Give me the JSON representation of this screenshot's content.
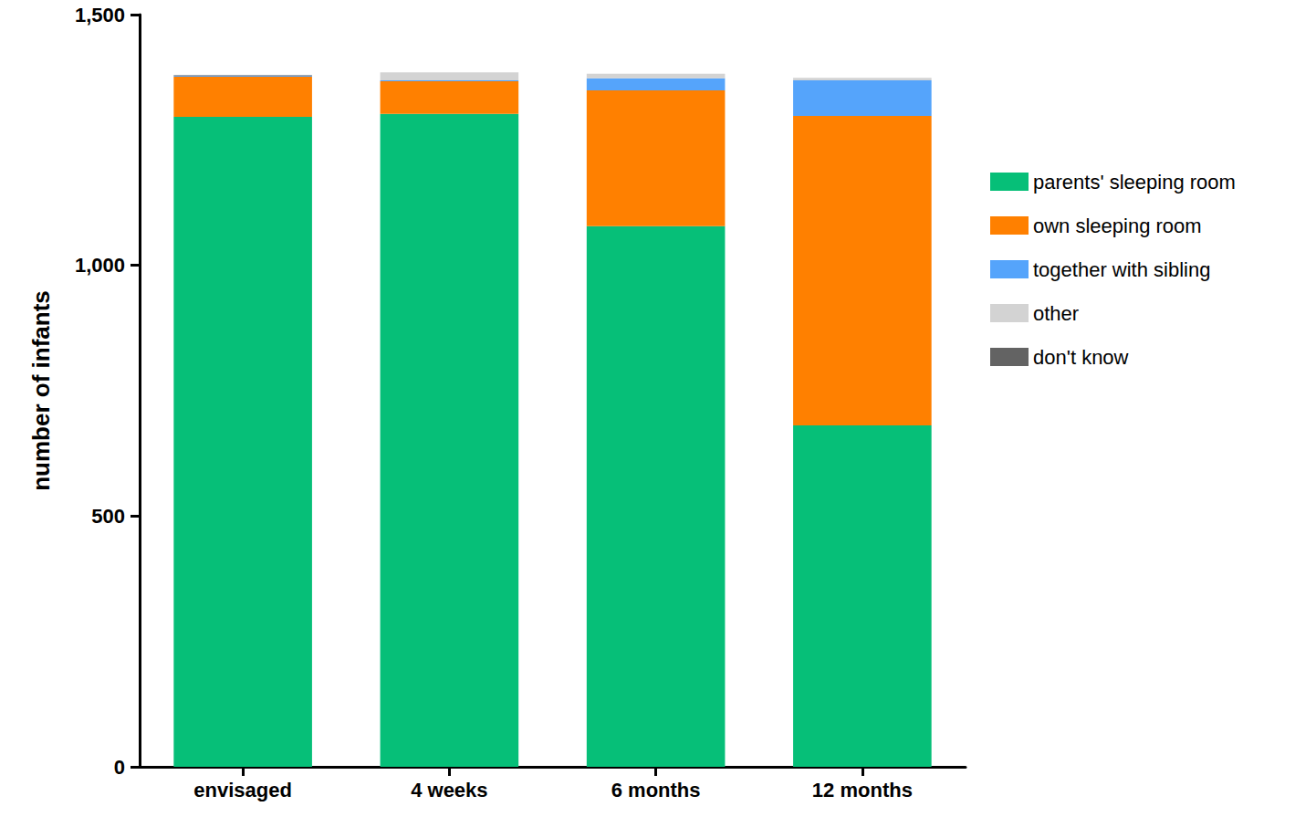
{
  "chart_data": {
    "type": "bar",
    "stacked": true,
    "grid": false,
    "legend": "right",
    "y_label": "number of infants",
    "categories": [
      "envisaged",
      "4 weeks",
      "6 months",
      "12 months"
    ],
    "ylim": [
      0,
      1500
    ],
    "yticks": [
      0,
      500,
      1000,
      1500
    ],
    "series": [
      {
        "name": "parents' sleeping room",
        "color": "#06bf78",
        "values": [
          1296,
          1302,
          1078,
          681
        ]
      },
      {
        "name": "own sleeping room",
        "color": "#ff8000",
        "values": [
          80,
          65,
          271,
          617
        ]
      },
      {
        "name": "together with sibling",
        "color": "#55a4fb",
        "values": [
          2,
          2,
          24,
          71
        ]
      },
      {
        "name": "other",
        "color": "#d3d3d3",
        "values": [
          1,
          16,
          9,
          5
        ]
      },
      {
        "name": "don't know",
        "color": "#636363",
        "values": [
          1,
          0,
          0,
          0
        ]
      }
    ]
  }
}
